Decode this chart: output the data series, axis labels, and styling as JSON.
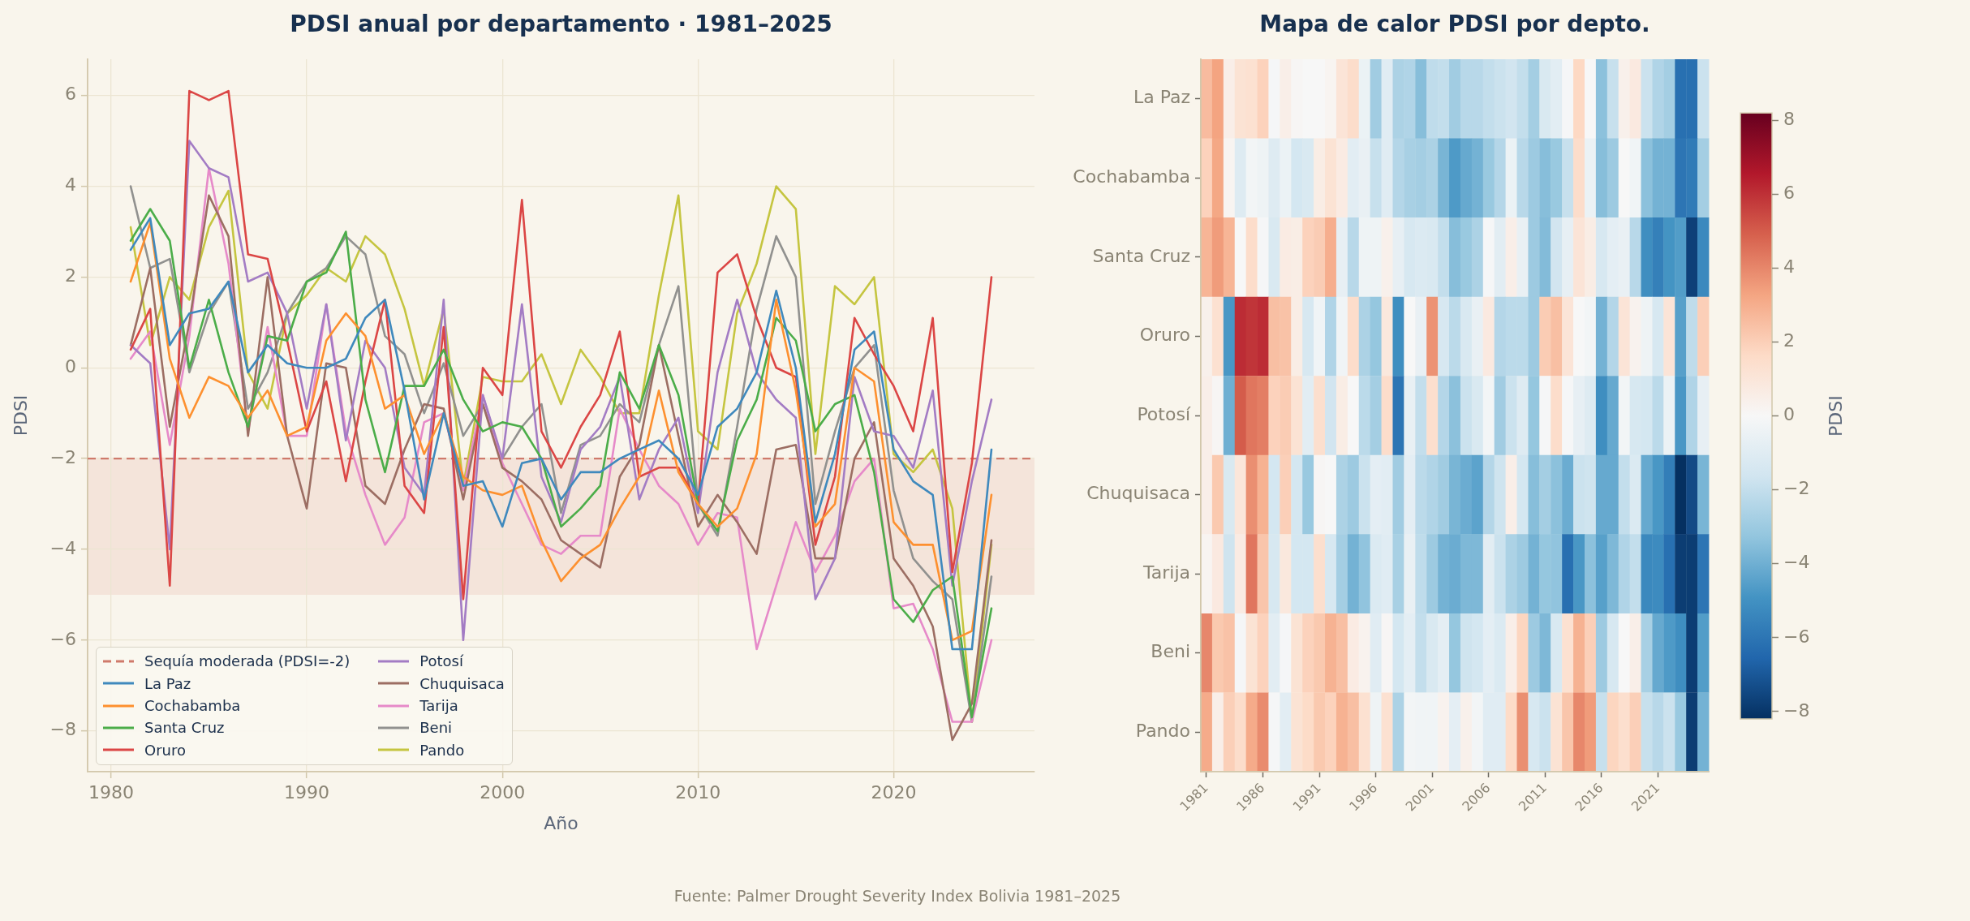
{
  "chart_data": [
    {
      "type": "line",
      "title": "PDSI anual por departamento · 1981–2025",
      "xlabel": "Año",
      "ylabel": "PDSI",
      "x": [
        1981,
        1982,
        1983,
        1984,
        1985,
        1986,
        1987,
        1988,
        1989,
        1990,
        1991,
        1992,
        1993,
        1994,
        1995,
        1996,
        1997,
        1998,
        1999,
        2000,
        2001,
        2002,
        2003,
        2004,
        2005,
        2006,
        2007,
        2008,
        2009,
        2010,
        2011,
        2012,
        2013,
        2014,
        2015,
        2016,
        2017,
        2018,
        2019,
        2020,
        2021,
        2022,
        2023,
        2024,
        2025
      ],
      "series": [
        {
          "name": "La Paz",
          "color": "#3f89bd",
          "values": [
            2.6,
            3.3,
            0.5,
            1.2,
            1.3,
            1.9,
            -0.1,
            0.5,
            0.1,
            0.0,
            0.0,
            0.2,
            1.1,
            1.5,
            -0.5,
            -2.9,
            -1.0,
            -2.6,
            -2.5,
            -3.5,
            -2.1,
            -2.0,
            -2.9,
            -2.3,
            -2.3,
            -2.0,
            -1.8,
            -1.6,
            -2.0,
            -2.8,
            -1.3,
            -0.9,
            -0.1,
            1.7,
            0.0,
            -3.4,
            -1.9,
            0.4,
            0.8,
            -1.8,
            -2.5,
            -2.8,
            -6.2,
            -6.2,
            -1.8
          ]
        },
        {
          "name": "Cochabamba",
          "color": "#fd902f",
          "values": [
            1.9,
            3.2,
            0.2,
            -1.1,
            -0.2,
            -0.4,
            -1.1,
            -0.5,
            -1.5,
            -1.3,
            0.6,
            1.2,
            0.7,
            -0.9,
            -0.6,
            -1.9,
            -1.0,
            -2.4,
            -2.7,
            -2.8,
            -2.6,
            -3.8,
            -4.7,
            -4.2,
            -3.9,
            -3.1,
            -2.4,
            -0.5,
            -2.3,
            -3.0,
            -3.5,
            -3.1,
            -1.9,
            1.5,
            -0.5,
            -3.5,
            -3.0,
            0.0,
            -0.3,
            -3.4,
            -3.9,
            -3.9,
            -6.0,
            -5.8,
            -2.8
          ]
        },
        {
          "name": "Santa Cruz",
          "color": "#4bad49",
          "values": [
            2.8,
            3.5,
            2.8,
            0.0,
            1.5,
            -0.1,
            -1.3,
            0.7,
            0.6,
            1.9,
            2.1,
            3.0,
            -0.7,
            -2.3,
            -0.4,
            -0.4,
            0.4,
            -0.7,
            -1.4,
            -1.2,
            -1.3,
            -2.0,
            -3.5,
            -3.1,
            -2.6,
            -0.1,
            -0.9,
            0.5,
            -0.6,
            -3.0,
            -3.6,
            -1.6,
            -0.7,
            1.1,
            0.6,
            -1.4,
            -0.8,
            -0.6,
            -2.3,
            -5.1,
            -5.6,
            -4.9,
            -4.6,
            -7.7,
            -5.3
          ]
        },
        {
          "name": "Oruro",
          "color": "#db4645",
          "values": [
            0.4,
            1.3,
            -4.8,
            6.1,
            5.9,
            6.1,
            2.5,
            2.4,
            0.6,
            -1.4,
            -0.3,
            -2.5,
            -0.3,
            1.5,
            -2.6,
            -3.2,
            0.9,
            -5.1,
            0.0,
            -0.6,
            3.7,
            -1.4,
            -2.2,
            -1.3,
            -0.6,
            0.8,
            -2.4,
            -2.2,
            -2.2,
            -3.0,
            2.1,
            2.5,
            1.1,
            0.0,
            -0.2,
            -3.9,
            -2.4,
            1.1,
            0.3,
            -0.4,
            -1.4,
            1.1,
            -4.5,
            -2.1,
            2.0
          ]
        },
        {
          "name": "Potosí",
          "color": "#a37cc4",
          "values": [
            0.5,
            0.1,
            -4.0,
            5.0,
            4.4,
            4.2,
            1.9,
            2.1,
            1.2,
            -0.9,
            1.4,
            -1.6,
            0.6,
            0.0,
            -2.2,
            -2.8,
            1.5,
            -6.0,
            -0.6,
            -2.0,
            1.4,
            -2.4,
            -3.4,
            -1.8,
            -1.3,
            -0.2,
            -2.9,
            -1.8,
            -1.1,
            -3.2,
            -0.1,
            1.5,
            -0.1,
            -0.7,
            -1.1,
            -5.1,
            -4.2,
            -0.2,
            -1.4,
            -1.5,
            -2.2,
            -0.5,
            -4.8,
            -2.5,
            -0.7
          ]
        },
        {
          "name": "Chuquisaca",
          "color": "#9c6e63",
          "values": [
            0.5,
            2.2,
            -1.3,
            1.0,
            3.8,
            2.9,
            -1.5,
            2.0,
            -1.5,
            -3.1,
            0.1,
            0.0,
            -2.6,
            -3.0,
            -1.8,
            -0.8,
            -0.9,
            -2.9,
            -0.8,
            -2.2,
            -2.5,
            -2.9,
            -3.8,
            -4.1,
            -4.4,
            -2.4,
            -1.7,
            0.5,
            -1.5,
            -3.5,
            -2.8,
            -3.4,
            -4.1,
            -1.8,
            -1.7,
            -4.2,
            -4.2,
            -2.0,
            -1.2,
            -4.2,
            -4.8,
            -5.7,
            -8.2,
            -7.4,
            -3.8
          ]
        },
        {
          "name": "Tarija",
          "color": "#e68ac9",
          "values": [
            0.2,
            0.8,
            -1.7,
            0.7,
            4.4,
            2.3,
            -1.4,
            0.9,
            -1.5,
            -1.5,
            1.4,
            -1.4,
            -2.8,
            -3.9,
            -3.3,
            -1.2,
            -1.0,
            -2.7,
            -0.6,
            -2.1,
            -3.0,
            -3.9,
            -4.1,
            -3.7,
            -3.7,
            -0.9,
            -1.8,
            -2.6,
            -3.0,
            -3.9,
            -3.2,
            -3.3,
            -6.2,
            -4.8,
            -3.4,
            -4.5,
            -3.7,
            -2.5,
            -2.0,
            -5.3,
            -5.2,
            -6.2,
            -7.8,
            -7.8,
            -6.0
          ]
        },
        {
          "name": "Beni",
          "color": "#91918f",
          "values": [
            4.0,
            2.2,
            2.4,
            -0.1,
            1.2,
            1.9,
            -0.9,
            -0.1,
            1.2,
            1.9,
            2.2,
            2.9,
            2.5,
            0.7,
            0.3,
            -1.0,
            0.1,
            -1.5,
            -0.8,
            -2.0,
            -1.3,
            -0.8,
            -3.2,
            -1.7,
            -1.5,
            -0.8,
            -1.2,
            0.5,
            1.8,
            -3.0,
            -3.7,
            -1.3,
            1.3,
            2.9,
            2.0,
            -3.0,
            -1.4,
            0.0,
            0.5,
            -2.7,
            -4.2,
            -4.7,
            -5.1,
            -7.8,
            -4.6
          ]
        },
        {
          "name": "Pando",
          "color": "#c5c540",
          "values": [
            3.1,
            0.5,
            2.0,
            1.5,
            3.1,
            3.9,
            -0.1,
            -0.9,
            1.2,
            1.6,
            2.2,
            1.9,
            2.9,
            2.5,
            1.3,
            -0.4,
            1.3,
            -2.6,
            -0.2,
            -0.3,
            -0.3,
            0.3,
            -0.8,
            0.4,
            -0.2,
            -1.0,
            -1.0,
            1.6,
            3.8,
            -1.4,
            -1.8,
            1.2,
            2.3,
            4.0,
            3.5,
            -1.9,
            1.8,
            1.4,
            2.0,
            -1.9,
            -2.3,
            -1.8,
            -3.1,
            -7.8,
            -3.9
          ]
        }
      ],
      "xlim": [
        1978.8,
        2027.2
      ],
      "ylim": [
        -8.9,
        6.8
      ],
      "xticks": [
        1980,
        1990,
        2000,
        2010,
        2020
      ],
      "yticks": [
        -8,
        -6,
        -4,
        -2,
        0,
        2,
        4,
        6
      ],
      "grid": true,
      "legend": "bottom left",
      "ref_lines": [
        {
          "axis": "y",
          "value": -2,
          "label": "Sequía moderada (PDSI=-2)",
          "color": "#cf7a6b",
          "line_style": "dashed"
        }
      ],
      "bands": [
        {
          "axis": "y",
          "from": -5,
          "to": -2,
          "color": "#f4e4da"
        }
      ],
      "annotations": [
        "Fuente: Palmer Drought Severity Index Bolivia 1981–2025"
      ]
    },
    {
      "type": "heatmap",
      "title": "Mapa de calor PDSI por depto.",
      "categories": [
        "1981",
        null,
        null,
        null,
        null,
        "1986",
        null,
        null,
        null,
        null,
        "1991",
        null,
        null,
        null,
        null,
        "1996",
        null,
        null,
        null,
        null,
        "2001",
        null,
        null,
        null,
        null,
        "2006",
        null,
        null,
        null,
        null,
        "2011",
        null,
        null,
        null,
        null,
        "2016",
        null,
        null,
        null,
        null,
        "2021",
        null,
        null,
        null,
        null
      ],
      "y_categories": [
        "La Paz",
        "Cochabamba",
        "Santa Cruz",
        "Oruro",
        "Potosí",
        "Chuquisaca",
        "Tarija",
        "Beni",
        "Pando"
      ],
      "cells": [
        [
          2.6,
          3.3,
          0.5,
          1.2,
          1.3,
          1.9,
          -0.1,
          0.5,
          0.1,
          0.0,
          0.0,
          0.2,
          1.1,
          1.5,
          -0.5,
          -2.9,
          -1.0,
          -2.6,
          -2.5,
          -3.5,
          -2.1,
          -2.0,
          -2.9,
          -2.3,
          -2.3,
          -2.0,
          -1.8,
          -1.6,
          -2.0,
          -2.8,
          -1.3,
          -0.9,
          -0.1,
          1.7,
          0.0,
          -3.4,
          -1.9,
          0.4,
          0.8,
          -1.8,
          -2.5,
          -2.8,
          -6.2,
          -6.2,
          -1.8
        ],
        [
          1.9,
          3.2,
          0.2,
          -1.1,
          -0.2,
          -0.4,
          -1.1,
          -0.5,
          -1.5,
          -1.3,
          0.6,
          1.2,
          0.7,
          -0.9,
          -0.6,
          -1.9,
          -1.0,
          -2.4,
          -2.7,
          -2.8,
          -2.6,
          -3.8,
          -4.7,
          -4.2,
          -3.9,
          -3.1,
          -2.4,
          -0.5,
          -2.3,
          -3.0,
          -3.5,
          -3.1,
          -1.9,
          1.5,
          -0.5,
          -3.5,
          -3.0,
          0.0,
          -0.3,
          -3.4,
          -3.9,
          -3.9,
          -6.0,
          -5.8,
          -2.8
        ],
        [
          2.8,
          3.5,
          2.8,
          0.0,
          1.5,
          -0.1,
          -1.3,
          0.7,
          0.6,
          1.9,
          2.1,
          3.0,
          -0.7,
          -2.3,
          -0.4,
          -0.4,
          0.4,
          -0.7,
          -1.4,
          -1.2,
          -1.3,
          -2.0,
          -3.5,
          -3.1,
          -2.6,
          -0.1,
          -0.9,
          0.5,
          -0.6,
          -3.0,
          -3.6,
          -1.6,
          -0.7,
          1.1,
          0.6,
          -1.4,
          -0.8,
          -0.6,
          -2.3,
          -5.1,
          -5.6,
          -4.9,
          -4.6,
          -7.7,
          -5.3
        ],
        [
          0.4,
          1.3,
          -4.8,
          6.1,
          5.9,
          6.1,
          2.5,
          2.4,
          0.6,
          -1.4,
          -0.3,
          -2.5,
          -0.3,
          1.5,
          -2.6,
          -3.2,
          0.9,
          -5.1,
          0.0,
          -0.6,
          3.7,
          -1.4,
          -2.2,
          -1.3,
          -0.6,
          0.8,
          -2.4,
          -2.2,
          -2.2,
          -3.0,
          2.1,
          2.5,
          1.1,
          0.0,
          -0.2,
          -3.9,
          -2.4,
          1.1,
          0.3,
          -0.4,
          -1.4,
          1.1,
          -4.5,
          -2.1,
          2.0
        ],
        [
          0.5,
          0.1,
          -4.0,
          5.0,
          4.4,
          4.2,
          1.9,
          2.1,
          1.2,
          -0.9,
          1.4,
          -1.6,
          0.6,
          0.0,
          -2.2,
          -2.8,
          1.5,
          -6.0,
          -0.6,
          -2.0,
          1.4,
          -2.4,
          -3.4,
          -1.8,
          -1.3,
          -0.2,
          -2.9,
          -1.8,
          -1.1,
          -3.2,
          -0.1,
          1.5,
          -0.1,
          -0.7,
          -1.1,
          -5.1,
          -4.2,
          -0.2,
          -1.4,
          -1.5,
          -2.2,
          -0.5,
          -4.8,
          -2.5,
          -0.7
        ],
        [
          0.5,
          2.2,
          -1.3,
          1.0,
          3.8,
          2.9,
          -1.5,
          2.0,
          -1.5,
          -3.1,
          0.1,
          0.0,
          -2.6,
          -3.0,
          -1.8,
          -0.8,
          -0.9,
          -2.9,
          -0.8,
          -2.2,
          -2.5,
          -2.9,
          -3.8,
          -4.1,
          -4.4,
          -2.4,
          -1.7,
          0.5,
          -1.5,
          -3.5,
          -2.8,
          -3.4,
          -4.1,
          -1.8,
          -1.7,
          -4.2,
          -4.2,
          -2.0,
          -1.2,
          -4.2,
          -4.8,
          -5.7,
          -8.2,
          -7.4,
          -3.8
        ],
        [
          0.2,
          0.8,
          -1.7,
          0.7,
          4.4,
          2.3,
          -1.4,
          0.9,
          -1.5,
          -1.5,
          1.4,
          -1.4,
          -2.8,
          -3.9,
          -3.3,
          -1.2,
          -1.0,
          -2.7,
          -0.6,
          -2.1,
          -3.0,
          -3.9,
          -4.1,
          -3.7,
          -3.7,
          -0.9,
          -1.8,
          -2.6,
          -3.0,
          -3.9,
          -3.2,
          -3.3,
          -6.2,
          -4.8,
          -3.4,
          -4.5,
          -3.7,
          -2.5,
          -2.0,
          -5.3,
          -5.2,
          -6.2,
          -7.8,
          -7.8,
          -6.0
        ],
        [
          4.0,
          2.2,
          2.4,
          -0.1,
          1.2,
          1.9,
          -0.9,
          -0.1,
          1.2,
          1.9,
          2.2,
          2.9,
          2.5,
          0.7,
          0.3,
          -1.0,
          0.1,
          -1.5,
          -0.8,
          -2.0,
          -1.3,
          -0.8,
          -3.2,
          -1.7,
          -1.5,
          -0.8,
          -1.2,
          0.5,
          1.8,
          -3.0,
          -3.7,
          -1.3,
          1.3,
          2.9,
          2.0,
          -3.0,
          -1.4,
          0.0,
          0.5,
          -2.7,
          -4.2,
          -4.7,
          -5.1,
          -7.8,
          -4.6
        ],
        [
          3.1,
          0.5,
          2.0,
          1.5,
          3.1,
          3.9,
          -0.1,
          -0.9,
          1.2,
          1.6,
          2.2,
          1.9,
          2.9,
          2.5,
          1.3,
          -0.4,
          1.3,
          -2.6,
          -0.2,
          -0.3,
          -0.3,
          0.3,
          -0.8,
          0.4,
          -0.2,
          -1.0,
          -1.0,
          1.6,
          3.8,
          -1.4,
          -1.8,
          1.2,
          2.3,
          4.0,
          3.5,
          -1.9,
          1.8,
          1.4,
          2.0,
          -1.9,
          -2.3,
          -1.8,
          -3.1,
          -7.8,
          -3.9
        ]
      ],
      "clim": [
        -8.2,
        8.2
      ],
      "cticks": [
        -8,
        -6,
        -4,
        -2,
        0,
        2,
        4,
        6,
        8
      ],
      "clabel": "PDSI"
    }
  ]
}
